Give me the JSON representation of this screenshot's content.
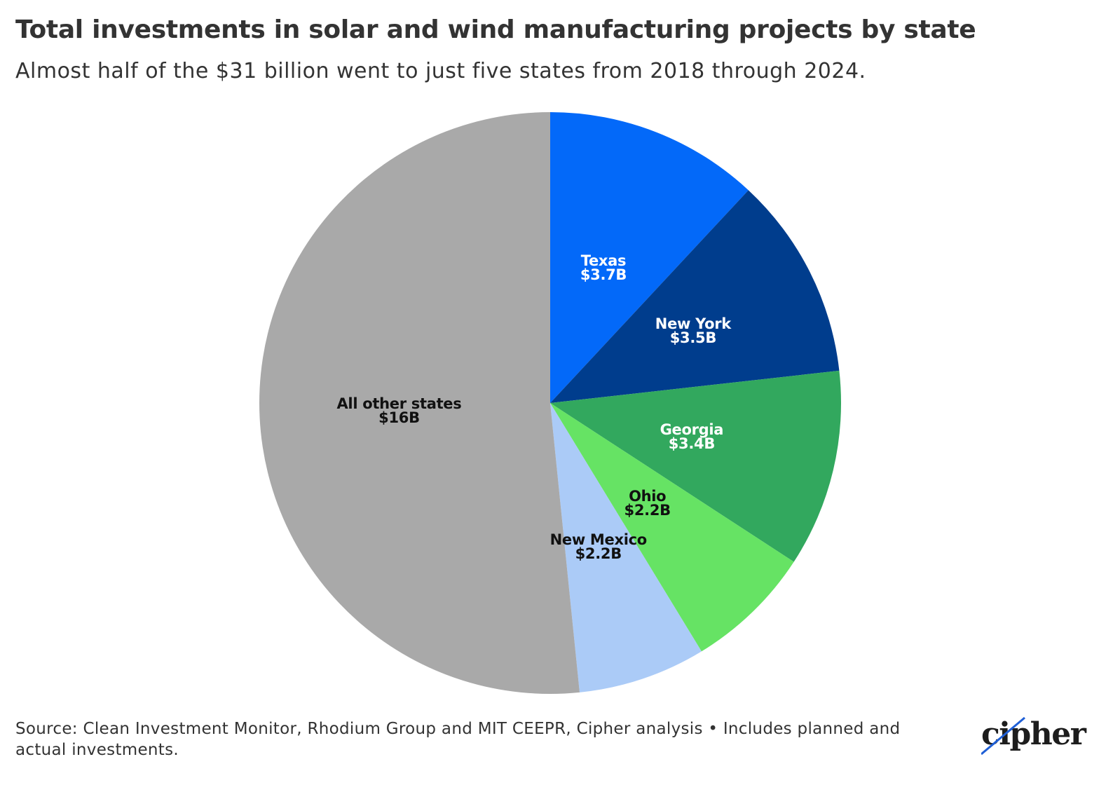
{
  "header": {
    "title": "Total investments in solar and wind manufacturing projects by state",
    "subtitle": "Almost half of the $31 billion went to just five states from 2018 through 2024."
  },
  "chart_data": {
    "type": "pie",
    "slices": [
      {
        "label": "Texas",
        "display_value": "$3.7B",
        "value": 3.7,
        "color": "#0369f9",
        "label_color": "#ffffff"
      },
      {
        "label": "New York",
        "display_value": "$3.5B",
        "value": 3.5,
        "color": "#003d8d",
        "label_color": "#ffffff"
      },
      {
        "label": "Georgia",
        "display_value": "$3.4B",
        "value": 3.4,
        "color": "#32a85e",
        "label_color": "#ffffff"
      },
      {
        "label": "Ohio",
        "display_value": "$2.2B",
        "value": 2.2,
        "color": "#66e364",
        "label_color": "#111111"
      },
      {
        "label": "New Mexico",
        "display_value": "$2.2B",
        "value": 2.2,
        "color": "#abcbf7",
        "label_color": "#111111"
      },
      {
        "label": "All other states",
        "display_value": "$16B",
        "value": 16,
        "color": "#a9a9a9",
        "label_color": "#111111"
      }
    ]
  },
  "footer": {
    "source_note": "Source: Clean Investment Monitor, Rhodium Group and MIT CEEPR, Cipher analysis • Includes planned and actual investments.",
    "logo_text": "cipher"
  }
}
